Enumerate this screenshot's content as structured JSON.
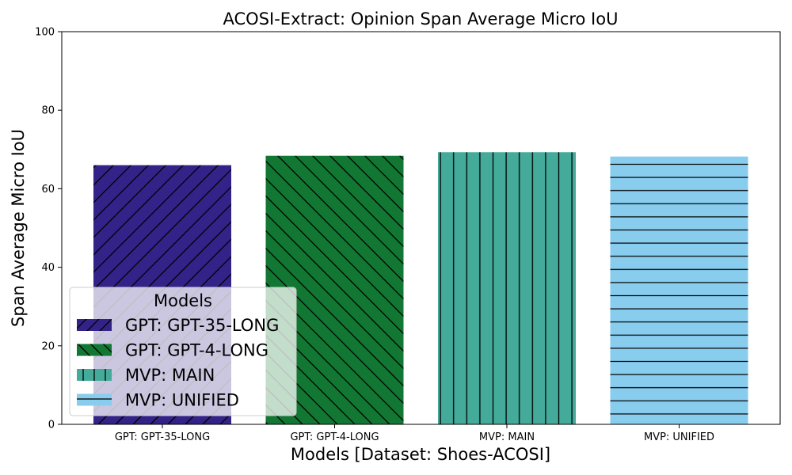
{
  "chart_data": {
    "type": "bar",
    "title": "ACOSI-Extract: Opinion Span Average Micro IoU",
    "xlabel": "Models [Dataset: Shoes-ACOSI]",
    "ylabel": "Span Average Micro IoU",
    "ylim": [
      0,
      100
    ],
    "yticks": [
      0,
      20,
      40,
      60,
      80,
      100
    ],
    "categories": [
      "GPT: GPT-35-LONG",
      "GPT: GPT-4-LONG",
      "MVP: MAIN",
      "MVP: UNIFIED"
    ],
    "values": [
      66.0,
      68.4,
      69.3,
      68.2
    ],
    "colors": [
      "#332288",
      "#117733",
      "#44AA99",
      "#88CCEE"
    ],
    "hatches": [
      "diagonal-up",
      "diagonal-down",
      "vertical",
      "horizontal"
    ],
    "grid": false,
    "legend": {
      "title": "Models",
      "placement": "lower-left",
      "entries": [
        "GPT: GPT-35-LONG",
        "GPT: GPT-4-LONG",
        "MVP: MAIN",
        "MVP: UNIFIED"
      ]
    }
  }
}
